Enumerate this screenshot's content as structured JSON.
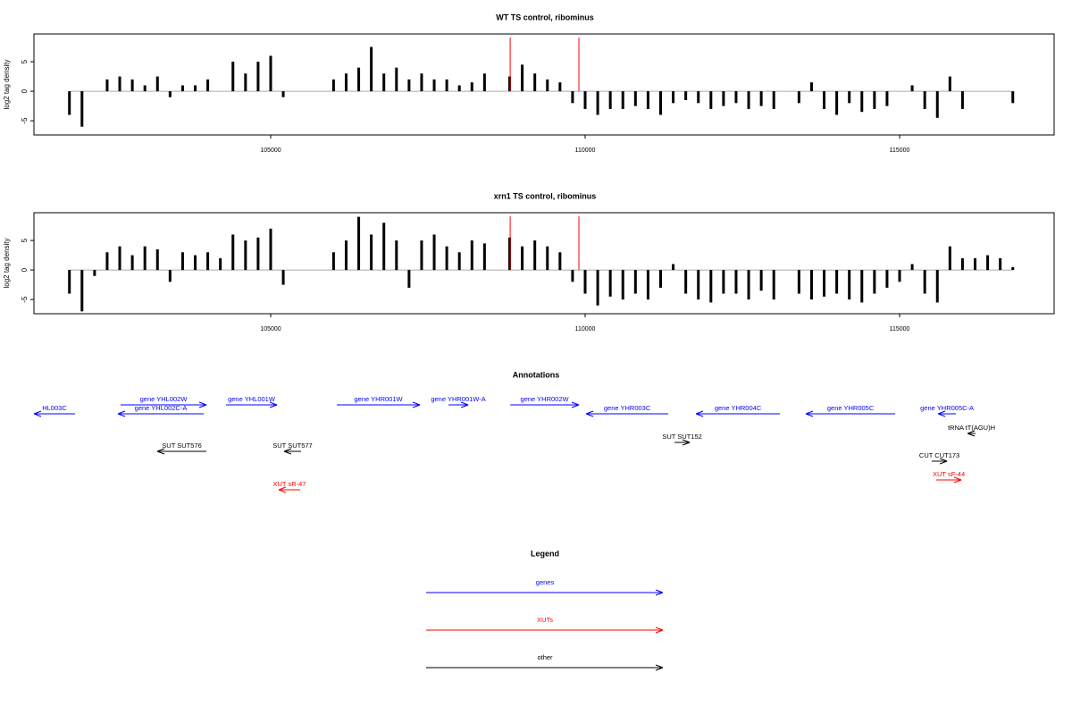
{
  "chart_data": [
    {
      "type": "bar",
      "title": "WT TS control, ribominus",
      "ylabel": "log2 tag density",
      "color": "#000000",
      "x": [
        101800,
        102000,
        102200,
        102400,
        102600,
        102800,
        103000,
        103200,
        103400,
        103600,
        103800,
        104000,
        104200,
        104400,
        104600,
        104800,
        105000,
        105200,
        105400,
        105600,
        105800,
        106000,
        106200,
        106400,
        106600,
        106800,
        107000,
        107200,
        107400,
        107600,
        107800,
        108000,
        108200,
        108400,
        108600,
        108800,
        109000,
        109200,
        109400,
        109600,
        109800,
        110000,
        110200,
        110400,
        110600,
        110800,
        111000,
        111200,
        111400,
        111600,
        111800,
        112000,
        112200,
        112400,
        112600,
        112800,
        113000,
        113200,
        113400,
        113600,
        113800,
        114000,
        114200,
        114400,
        114600,
        114800,
        115000,
        115200,
        115400,
        115600,
        115800,
        116000,
        116200,
        116400,
        116600,
        116800
      ],
      "values": [
        -4,
        -6,
        null,
        2,
        2.5,
        2,
        1,
        2.5,
        -1,
        1,
        1,
        2,
        null,
        5,
        3,
        5,
        6,
        -1,
        null,
        null,
        null,
        2,
        3,
        4,
        7.5,
        3,
        4,
        2,
        3,
        2,
        2,
        1,
        1.5,
        3,
        null,
        2.5,
        4.5,
        3,
        2,
        1.5,
        -2,
        -3,
        -4,
        -3,
        -3,
        -2.5,
        -3,
        -4,
        -2,
        -1.5,
        -2,
        -3,
        -2.5,
        -2,
        -3,
        -2.5,
        -3,
        null,
        -2,
        1.5,
        -3,
        -4,
        -2,
        -3.5,
        -3,
        -2.5,
        null,
        1,
        -3,
        -4.5,
        2.5,
        -3,
        null,
        null,
        null,
        -2
      ],
      "vlines": [
        108808,
        109901
      ],
      "vline_color": "#ff0000",
      "xlim": [
        101236,
        117457
      ],
      "xticks": [
        105000,
        110000,
        115000
      ],
      "ylim": [
        -7.4,
        9.7
      ],
      "yticks": [
        -5,
        0,
        5
      ]
    },
    {
      "type": "bar",
      "title": "xrn1 TS control, ribominus",
      "ylabel": "log2 tag density",
      "color": "#000000",
      "x": [
        101800,
        102000,
        102200,
        102400,
        102600,
        102800,
        103000,
        103200,
        103400,
        103600,
        103800,
        104000,
        104200,
        104400,
        104600,
        104800,
        105000,
        105200,
        105400,
        105600,
        105800,
        106000,
        106200,
        106400,
        106600,
        106800,
        107000,
        107200,
        107400,
        107600,
        107800,
        108000,
        108200,
        108400,
        108600,
        108800,
        109000,
        109200,
        109400,
        109600,
        109800,
        110000,
        110200,
        110400,
        110600,
        110800,
        111000,
        111200,
        111400,
        111600,
        111800,
        112000,
        112200,
        112400,
        112600,
        112800,
        113000,
        113200,
        113400,
        113600,
        113800,
        114000,
        114200,
        114400,
        114600,
        114800,
        115000,
        115200,
        115400,
        115600,
        115800,
        116000,
        116200,
        116400,
        116600,
        116800
      ],
      "values": [
        -4,
        -7,
        -1,
        3,
        4,
        2.5,
        4,
        3.5,
        -2,
        3,
        2.5,
        3,
        2,
        6,
        5,
        5.5,
        7,
        -2.5,
        null,
        null,
        null,
        3,
        5,
        9,
        6,
        8,
        5,
        -3,
        5,
        6,
        4,
        3,
        5,
        4.5,
        null,
        5.5,
        4,
        5,
        4,
        3,
        -2,
        -4,
        -6,
        -4.5,
        -5,
        -4,
        -5,
        -3,
        1,
        -4,
        -5,
        -5.5,
        -4,
        -4,
        -5,
        -3.5,
        -5,
        null,
        -4,
        -5,
        -4.5,
        -4,
        -5,
        -5.5,
        -4,
        -3,
        -2,
        1,
        -4,
        -5.5,
        4,
        2,
        2,
        2.5,
        2,
        0.5
      ],
      "vlines": [
        108808,
        109901
      ],
      "vline_color": "#ff0000",
      "xlim": [
        101236,
        117457
      ],
      "xticks": [
        105000,
        110000,
        115000
      ],
      "ylim": [
        -7.4,
        9.7
      ],
      "yticks": [
        -5,
        0,
        5
      ]
    }
  ],
  "annotations": {
    "title": "Annotations",
    "features": [
      {
        "label": "HL003C",
        "color": "#0000ff",
        "from": 101889,
        "to": 101236
      },
      {
        "label": "gene YHL002W",
        "color": "#0000ff",
        "from": 102614,
        "to": 103978
      },
      {
        "label": "gene YHL002C-A",
        "color": "#0000ff",
        "from": 103935,
        "to": 102571
      },
      {
        "label": "gene YHL001W",
        "color": "#0000ff",
        "from": 104290,
        "to": 105100
      },
      {
        "label": "gene YHR001W",
        "color": "#0000ff",
        "from": 106052,
        "to": 107373
      },
      {
        "label": "gene YHR001W-A",
        "color": "#0000ff",
        "from": 107827,
        "to": 108140
      },
      {
        "label": "gene YHR002W",
        "color": "#0000ff",
        "from": 108808,
        "to": 109901
      },
      {
        "label": "gene YHR003C",
        "color": "#0000ff",
        "from": 111322,
        "to": 110015
      },
      {
        "label": "gene YHR004C",
        "color": "#0000ff",
        "from": 113097,
        "to": 111762
      },
      {
        "label": "gene YHR005C",
        "color": "#0000ff",
        "from": 114930,
        "to": 113509
      },
      {
        "label": "gene YHR005C-A",
        "color": "#0000ff",
        "from": 115896,
        "to": 115612
      },
      {
        "label": "tRNA tT(AGU)H",
        "color": "#000000",
        "from": 116208,
        "to": 116080
      },
      {
        "label": "SUT SUT576",
        "color": "#000000",
        "from": 103978,
        "to": 103196
      },
      {
        "label": "SUT SUT577",
        "color": "#000000",
        "from": 105483,
        "to": 105213
      },
      {
        "label": "SUT SUT152",
        "color": "#000000",
        "from": 111421,
        "to": 111663
      },
      {
        "label": "CUT CUT173",
        "color": "#000000",
        "from": 115512,
        "to": 115754
      },
      {
        "label": "XUT sR-47",
        "color": "#ff0000",
        "from": 105469,
        "to": 105128
      },
      {
        "label": "XUT sF-44",
        "color": "#ff0000",
        "from": 115583,
        "to": 115981
      }
    ]
  },
  "legend": {
    "title": "Legend",
    "items": [
      {
        "label": "genes",
        "color": "#0000ff"
      },
      {
        "label": "XUTs",
        "color": "#ff0000"
      },
      {
        "label": "other",
        "color": "#000000"
      }
    ]
  }
}
